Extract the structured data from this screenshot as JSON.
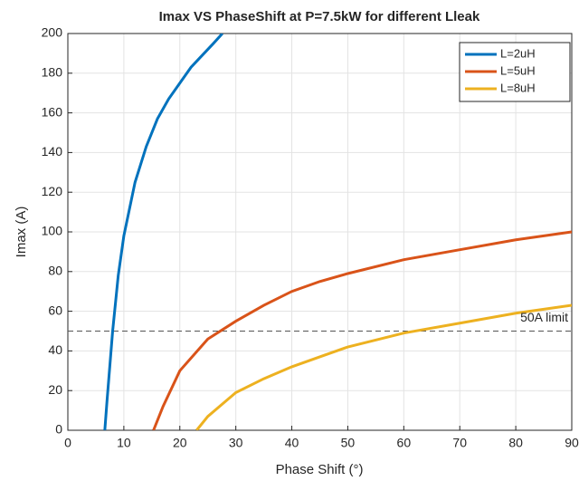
{
  "chart_data": {
    "type": "line",
    "title": "Imax VS PhaseShift at P=7.5kW for different Lleak",
    "xlabel": "Phase Shift (°)",
    "ylabel": "Imax (A)",
    "xlim": [
      0,
      90
    ],
    "xticks": [
      0,
      10,
      20,
      30,
      40,
      50,
      60,
      70,
      80,
      90
    ],
    "ylim": [
      0,
      200
    ],
    "yticks": [
      0,
      20,
      40,
      60,
      80,
      100,
      120,
      140,
      160,
      180,
      200
    ],
    "grid": true,
    "legend": "upper right",
    "series": [
      {
        "name": "L=2uH",
        "color": "#0072bd",
        "x": [
          6.6,
          7,
          8,
          9,
          10,
          12,
          14,
          16,
          18,
          20,
          22,
          24,
          26,
          27.6
        ],
        "values": [
          0,
          15,
          50,
          78,
          98,
          125,
          143,
          157,
          167,
          175,
          183,
          189,
          195,
          200
        ]
      },
      {
        "name": "L=5uH",
        "color": "#d95319",
        "x": [
          15.3,
          17,
          20,
          25,
          30,
          35,
          40,
          45,
          50,
          60,
          70,
          80,
          90
        ],
        "values": [
          0,
          12,
          30,
          46,
          55,
          63,
          70,
          75,
          79,
          86,
          91,
          96,
          100
        ]
      },
      {
        "name": "L=8uH",
        "color": "#edb120",
        "x": [
          23,
          25,
          30,
          35,
          40,
          45,
          50,
          60,
          70,
          80,
          90
        ],
        "values": [
          0,
          7,
          19,
          26,
          32,
          37,
          42,
          49,
          54,
          59,
          63
        ]
      }
    ],
    "annotations": [
      {
        "text": "50A limit",
        "y": 50
      }
    ]
  }
}
